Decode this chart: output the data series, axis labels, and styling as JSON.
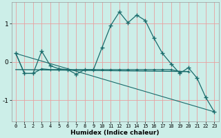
{
  "xlabel": "Humidex (Indice chaleur)",
  "bg_color": "#cceee8",
  "line_color": "#1a6b6b",
  "grid_color": "#e8a0a0",
  "xlim": [
    -0.5,
    23.5
  ],
  "ylim": [
    -1.55,
    1.55
  ],
  "yticks": [
    -1,
    0,
    1
  ],
  "xticks": [
    0,
    1,
    2,
    3,
    4,
    5,
    6,
    7,
    8,
    9,
    10,
    11,
    12,
    13,
    14,
    15,
    16,
    17,
    18,
    19,
    20,
    21,
    22,
    23
  ],
  "line1_x": [
    0,
    1,
    2,
    3,
    4,
    5,
    6,
    7,
    8,
    9,
    10,
    11,
    12,
    13,
    14,
    15,
    16,
    17,
    18,
    19,
    20,
    21,
    22,
    23
  ],
  "line1_y": [
    0.22,
    -0.3,
    -0.3,
    0.28,
    -0.1,
    -0.18,
    -0.2,
    -0.32,
    -0.2,
    -0.2,
    0.38,
    0.95,
    1.3,
    1.02,
    1.22,
    1.08,
    0.62,
    0.22,
    -0.05,
    -0.3,
    -0.15,
    -0.42,
    -0.92,
    -1.3
  ],
  "line2_x": [
    0,
    1,
    2,
    3,
    4,
    5,
    6,
    7,
    8,
    9,
    10,
    11,
    12,
    13,
    14,
    15,
    16,
    17,
    18,
    19,
    20
  ],
  "line2_y": [
    0.22,
    -0.3,
    -0.3,
    -0.18,
    -0.2,
    -0.2,
    -0.2,
    -0.2,
    -0.2,
    -0.2,
    -0.2,
    -0.2,
    -0.2,
    -0.2,
    -0.2,
    -0.2,
    -0.2,
    -0.2,
    -0.2,
    -0.25,
    -0.25
  ],
  "line3_x": [
    0,
    23
  ],
  "line3_y": [
    0.22,
    -1.3
  ],
  "line4_x": [
    0,
    20
  ],
  "line4_y": [
    -0.2,
    -0.25
  ]
}
